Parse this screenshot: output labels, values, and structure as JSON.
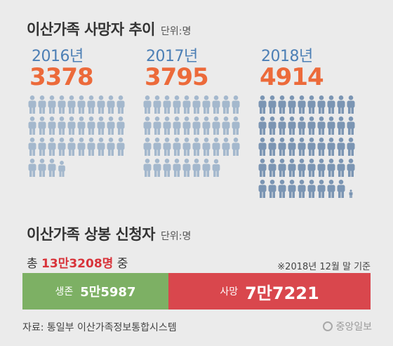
{
  "title": "이산가족 사망자 추이",
  "title_unit": "단위:명",
  "chart_data": {
    "type": "pictogram",
    "title": "이산가족 사망자 추이",
    "unit": "단위:명",
    "categories": [
      "2016년",
      "2017년",
      "2018년"
    ],
    "values": [
      3378,
      3795,
      4914
    ],
    "values_label": [
      "3378",
      "3795",
      "4914"
    ],
    "colors": {
      "year": "#4c7fb5",
      "value": "#ec6a3a",
      "figure_light": "#a4b8cd",
      "figure_dark": "#7b95b3"
    }
  },
  "section2": {
    "title": "이산가족 상봉 신청자",
    "unit": "단위:명",
    "total_prefix": "총",
    "total_value": "13만3208명",
    "total_suffix": "중",
    "note": "※2018년 12월 말 기준",
    "bar": {
      "alive_label": "생존",
      "alive_value": "5만5987",
      "alive_number": 55987,
      "dead_label": "사망",
      "dead_value": "7만7221",
      "dead_number": 77221,
      "alive_color": "#7db064",
      "dead_color": "#d9474d"
    }
  },
  "source": "자료: 통일부 이산가족정보통합시스템",
  "logo": "중앙일보"
}
